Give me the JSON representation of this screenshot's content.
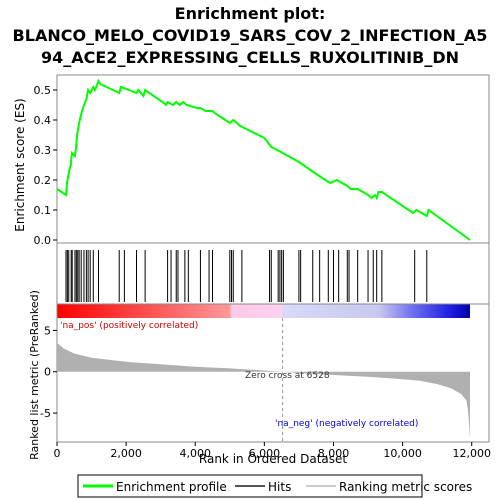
{
  "title_line1": "Enrichment plot:",
  "title_line2": "BLANCO_MELO_COVID19_SARS_COV_2_INFECTION_A5",
  "title_line3": "94_ACE2_EXPRESSING_CELLS_RUXOLITINIB_DN",
  "colors": {
    "enrichment": "#00ff00",
    "hits": "#000000",
    "metric_fill": "#b0b0b0",
    "pos_label": "#cc0000",
    "neg_label": "#0000cc",
    "zero_cross_line": "#909090"
  },
  "annotations": {
    "pos": "'na_pos' (positively correlated)",
    "neg": "'na_neg' (negatively correlated)",
    "zero_cross": "Zero cross at 6528"
  },
  "legend": {
    "enrichment": "Enrichment profile",
    "hits": "Hits",
    "metric": "Ranking metric scores"
  },
  "chart_data": {
    "type": "line",
    "xlabel": "Rank in Ordered Dataset",
    "xlim": [
      0,
      12500
    ],
    "x_ticks": [
      0,
      2000,
      4000,
      6000,
      8000,
      10000,
      12000
    ],
    "x_tick_labels": [
      "0",
      "2,000",
      "4,000",
      "6,000",
      "8,000",
      "10,000",
      "12,000"
    ],
    "enrichment": {
      "ylabel": "Enrichment score (ES)",
      "ylim": [
        0,
        0.55
      ],
      "y_ticks": [
        0.0,
        0.1,
        0.2,
        0.3,
        0.4,
        0.5
      ],
      "y_tick_labels": [
        "0.0",
        "0.1",
        "0.2",
        "0.3",
        "0.4",
        "0.5"
      ],
      "series": [
        {
          "name": "Enrichment profile",
          "x": [
            0,
            260,
            290,
            350,
            400,
            430,
            520,
            560,
            580,
            610,
            640,
            700,
            780,
            850,
            900,
            960,
            1050,
            1100,
            1200,
            1250,
            1800,
            1850,
            2300,
            2350,
            2500,
            2550,
            3050,
            3150,
            3200,
            3350,
            3450,
            3550,
            3650,
            3750,
            4050,
            4150,
            4300,
            4400,
            4500,
            4600,
            5000,
            5100,
            5300,
            6000,
            6200,
            6528,
            7000,
            7500,
            7900,
            8100,
            8400,
            8500,
            8700,
            9000,
            9100,
            9200,
            9250,
            9300,
            9350,
            9400,
            10300,
            10400,
            10700,
            10750,
            11950
          ],
          "y": [
            0.17,
            0.15,
            0.19,
            0.23,
            0.25,
            0.29,
            0.28,
            0.32,
            0.35,
            0.37,
            0.39,
            0.42,
            0.45,
            0.47,
            0.5,
            0.49,
            0.51,
            0.5,
            0.53,
            0.52,
            0.49,
            0.51,
            0.49,
            0.5,
            0.48,
            0.5,
            0.46,
            0.45,
            0.46,
            0.45,
            0.46,
            0.45,
            0.46,
            0.45,
            0.44,
            0.44,
            0.43,
            0.43,
            0.43,
            0.42,
            0.39,
            0.4,
            0.38,
            0.34,
            0.31,
            0.29,
            0.26,
            0.22,
            0.19,
            0.2,
            0.18,
            0.17,
            0.17,
            0.15,
            0.14,
            0.15,
            0.14,
            0.16,
            0.16,
            0.16,
            0.09,
            0.1,
            0.08,
            0.1,
            0.0
          ]
        }
      ]
    },
    "hits": [
      260,
      300,
      340,
      410,
      440,
      520,
      560,
      600,
      640,
      700,
      780,
      850,
      900,
      960,
      1050,
      1200,
      1800,
      1950,
      2300,
      2550,
      3200,
      3300,
      3450,
      3500,
      3700,
      3800,
      4150,
      4400,
      4500,
      5000,
      5050,
      5100,
      5350,
      6150,
      6200,
      6400,
      6450,
      6500,
      6550,
      7000,
      7050,
      7400,
      7600,
      7850,
      8000,
      8150,
      8400,
      8450,
      8700,
      9000,
      9150,
      9250,
      9400,
      10350,
      10700
    ],
    "metric": {
      "ylabel": "Ranked list metric (PreRanked)",
      "ylim": [
        -8.5,
        6.5
      ],
      "y_ticks": [
        -5,
        0,
        5
      ],
      "y_tick_labels": [
        "-5",
        "0",
        "5"
      ],
      "x": [
        0,
        200,
        500,
        1000,
        2000,
        3000,
        4000,
        5000,
        6000,
        6528,
        7000,
        8000,
        9000,
        10000,
        10500,
        11000,
        11400,
        11700,
        11850,
        11900,
        11950
      ],
      "y": [
        3.5,
        2.8,
        2.2,
        1.7,
        1.2,
        0.9,
        0.6,
        0.4,
        0.15,
        0.0,
        -0.15,
        -0.4,
        -0.6,
        -0.9,
        -1.1,
        -1.5,
        -2.0,
        -2.7,
        -3.5,
        -5.0,
        -8.0
      ]
    },
    "zero_cross": 6528
  }
}
